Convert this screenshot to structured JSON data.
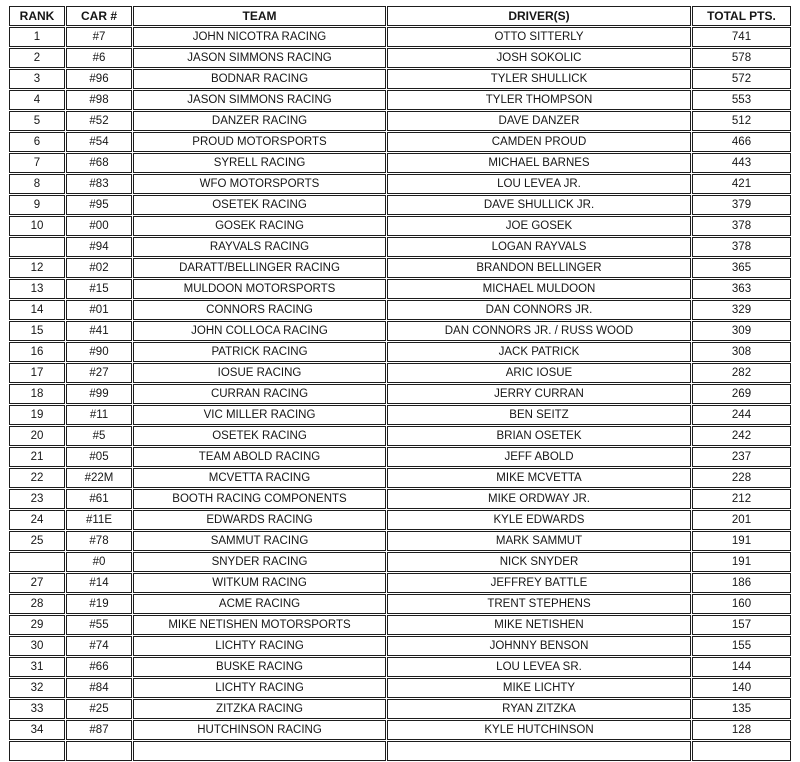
{
  "table": {
    "headers": [
      "RANK",
      "CAR #",
      "TEAM",
      "DRIVER(S)",
      "TOTAL PTS."
    ],
    "rows": [
      [
        "1",
        "#7",
        "JOHN NICOTRA RACING",
        "OTTO SITTERLY",
        "741"
      ],
      [
        "2",
        "#6",
        "JASON SIMMONS RACING",
        "JOSH SOKOLIC",
        "578"
      ],
      [
        "3",
        "#96",
        "BODNAR RACING",
        "TYLER SHULLICK",
        "572"
      ],
      [
        "4",
        "#98",
        "JASON SIMMONS RACING",
        "TYLER THOMPSON",
        "553"
      ],
      [
        "5",
        "#52",
        "DANZER RACING",
        "DAVE DANZER",
        "512"
      ],
      [
        "6",
        "#54",
        "PROUD MOTORSPORTS",
        "CAMDEN PROUD",
        "466"
      ],
      [
        "7",
        "#68",
        "SYRELL RACING",
        "MICHAEL BARNES",
        "443"
      ],
      [
        "8",
        "#83",
        "WFO MOTORSPORTS",
        "LOU LEVEA JR.",
        "421"
      ],
      [
        "9",
        "#95",
        "OSETEK RACING",
        "DAVE SHULLICK JR.",
        "379"
      ],
      [
        "10",
        "#00",
        "GOSEK RACING",
        "JOE GOSEK",
        "378"
      ],
      [
        "",
        "#94",
        "RAYVALS RACING",
        "LOGAN RAYVALS",
        "378"
      ],
      [
        "12",
        "#02",
        "DARATT/BELLINGER RACING",
        "BRANDON BELLINGER",
        "365"
      ],
      [
        "13",
        "#15",
        "MULDOON MOTORSPORTS",
        "MICHAEL MULDOON",
        "363"
      ],
      [
        "14",
        "#01",
        "CONNORS RACING",
        "DAN CONNORS JR.",
        "329"
      ],
      [
        "15",
        "#41",
        "JOHN COLLOCA RACING",
        "DAN CONNORS JR. / RUSS WOOD",
        "309"
      ],
      [
        "16",
        "#90",
        "PATRICK RACING",
        "JACK PATRICK",
        "308"
      ],
      [
        "17",
        "#27",
        "IOSUE RACING",
        "ARIC IOSUE",
        "282"
      ],
      [
        "18",
        "#99",
        "CURRAN RACING",
        "JERRY CURRAN",
        "269"
      ],
      [
        "19",
        "#11",
        "VIC MILLER RACING",
        "BEN SEITZ",
        "244"
      ],
      [
        "20",
        "#5",
        "OSETEK RACING",
        "BRIAN OSETEK",
        "242"
      ],
      [
        "21",
        "#05",
        "TEAM ABOLD RACING",
        "JEFF ABOLD",
        "237"
      ],
      [
        "22",
        "#22M",
        "MCVETTA RACING",
        "MIKE MCVETTA",
        "228"
      ],
      [
        "23",
        "#61",
        "BOOTH RACING COMPONENTS",
        "MIKE ORDWAY JR.",
        "212"
      ],
      [
        "24",
        "#11E",
        "EDWARDS RACING",
        "KYLE EDWARDS",
        "201"
      ],
      [
        "25",
        "#78",
        "SAMMUT RACING",
        "MARK SAMMUT",
        "191"
      ],
      [
        "",
        "#0",
        "SNYDER RACING",
        "NICK SNYDER",
        "191"
      ],
      [
        "27",
        "#14",
        "WITKUM RACING",
        "JEFFREY BATTLE",
        "186"
      ],
      [
        "28",
        "#19",
        "ACME RACING",
        "TRENT STEPHENS",
        "160"
      ],
      [
        "29",
        "#55",
        "MIKE NETISHEN MOTORSPORTS",
        "MIKE NETISHEN",
        "157"
      ],
      [
        "30",
        "#74",
        "LICHTY RACING",
        "JOHNNY BENSON",
        "155"
      ],
      [
        "31",
        "#66",
        "BUSKE RACING",
        "LOU LEVEA SR.",
        "144"
      ],
      [
        "32",
        "#84",
        "LICHTY RACING",
        "MIKE LICHTY",
        "140"
      ],
      [
        "33",
        "#25",
        "ZITZKA RACING",
        "RYAN ZITZKA",
        "135"
      ],
      [
        "34",
        "#87",
        "HUTCHINSON RACING",
        "KYLE HUTCHINSON",
        "128"
      ],
      [
        "",
        "",
        "",
        "",
        ""
      ]
    ]
  }
}
